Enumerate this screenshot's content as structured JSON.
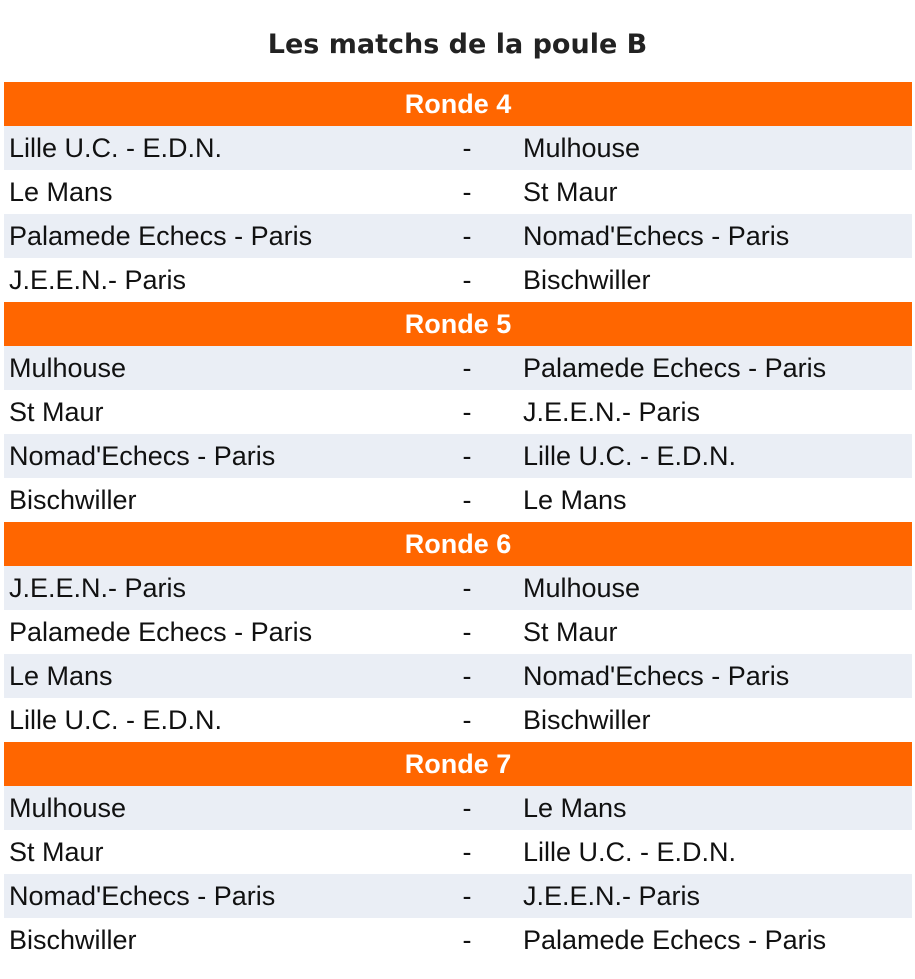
{
  "title": "Les matchs de la poule B",
  "separator": "-",
  "colors": {
    "header": "#ff6600",
    "row_alt": "#eaeef5"
  },
  "rounds": [
    {
      "label": "Ronde 4",
      "matches": [
        {
          "home": "Lille U.C. - E.D.N.",
          "away": "Mulhouse"
        },
        {
          "home": "Le Mans",
          "away": "St Maur"
        },
        {
          "home": "Palamede Echecs - Paris",
          "away": "Nomad'Echecs - Paris"
        },
        {
          "home": "J.E.E.N.- Paris",
          "away": "Bischwiller"
        }
      ]
    },
    {
      "label": "Ronde 5",
      "matches": [
        {
          "home": "Mulhouse",
          "away": "Palamede Echecs - Paris"
        },
        {
          "home": "St Maur",
          "away": "J.E.E.N.- Paris"
        },
        {
          "home": "Nomad'Echecs - Paris",
          "away": "Lille U.C. - E.D.N."
        },
        {
          "home": "Bischwiller",
          "away": "Le Mans"
        }
      ]
    },
    {
      "label": "Ronde 6",
      "matches": [
        {
          "home": "J.E.E.N.- Paris",
          "away": "Mulhouse"
        },
        {
          "home": "Palamede Echecs - Paris",
          "away": "St Maur"
        },
        {
          "home": "Le Mans",
          "away": "Nomad'Echecs - Paris"
        },
        {
          "home": "Lille U.C. - E.D.N.",
          "away": "Bischwiller"
        }
      ]
    },
    {
      "label": "Ronde 7",
      "matches": [
        {
          "home": "Mulhouse",
          "away": "Le Mans"
        },
        {
          "home": "St Maur",
          "away": "Lille U.C. - E.D.N."
        },
        {
          "home": "Nomad'Echecs - Paris",
          "away": "J.E.E.N.- Paris"
        },
        {
          "home": "Bischwiller",
          "away": "Palamede Echecs - Paris"
        }
      ]
    }
  ]
}
